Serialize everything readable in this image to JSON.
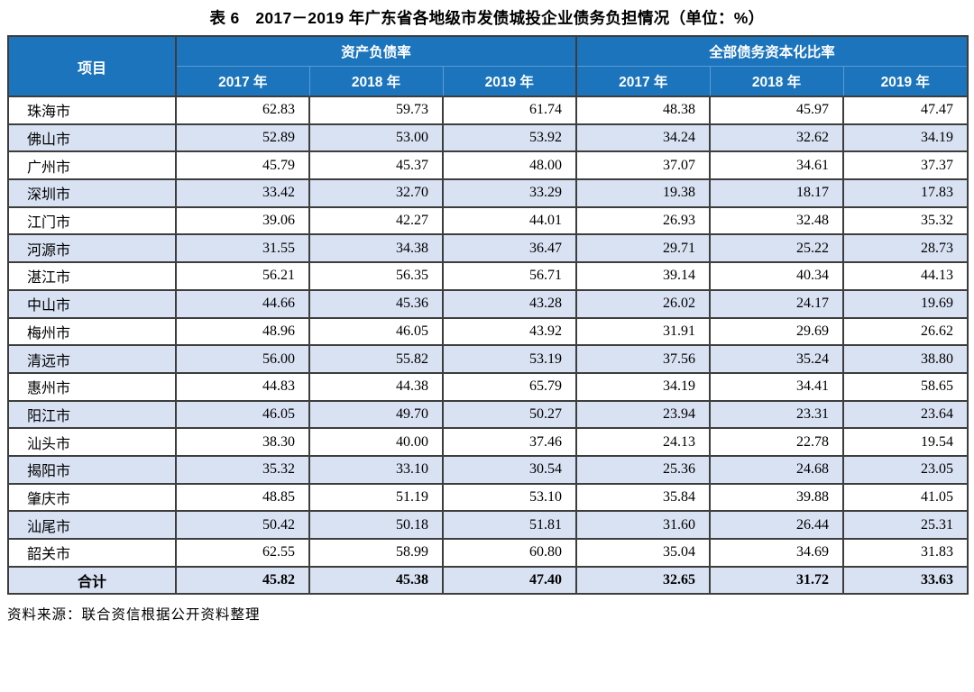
{
  "page": {
    "title": "表 6　2017－2019 年广东省各地级市发债城投企业债务负担情况（单位：%）",
    "source_note": "资料来源：联合资信根据公开资料整理"
  },
  "colors": {
    "header_bg": "#1b74bc",
    "header_text": "#ffffff",
    "alt_row_bg": "#d9e2f3",
    "grid_border": "#3d3d3d",
    "header_inner_border": "#5b9bd5"
  },
  "table": {
    "item_header": "项目",
    "groups": [
      {
        "label": "资产负债率",
        "years": [
          "2017 年",
          "2018 年",
          "2019 年"
        ]
      },
      {
        "label": "全部债务资本化比率",
        "years": [
          "2017 年",
          "2018 年",
          "2019 年"
        ]
      }
    ],
    "rows": [
      {
        "name": "珠海市",
        "values": [
          "62.83",
          "59.73",
          "61.74",
          "48.38",
          "45.97",
          "47.47"
        ]
      },
      {
        "name": "佛山市",
        "values": [
          "52.89",
          "53.00",
          "53.92",
          "34.24",
          "32.62",
          "34.19"
        ]
      },
      {
        "name": "广州市",
        "values": [
          "45.79",
          "45.37",
          "48.00",
          "37.07",
          "34.61",
          "37.37"
        ]
      },
      {
        "name": "深圳市",
        "values": [
          "33.42",
          "32.70",
          "33.29",
          "19.38",
          "18.17",
          "17.83"
        ]
      },
      {
        "name": "江门市",
        "values": [
          "39.06",
          "42.27",
          "44.01",
          "26.93",
          "32.48",
          "35.32"
        ]
      },
      {
        "name": "河源市",
        "values": [
          "31.55",
          "34.38",
          "36.47",
          "29.71",
          "25.22",
          "28.73"
        ]
      },
      {
        "name": "湛江市",
        "values": [
          "56.21",
          "56.35",
          "56.71",
          "39.14",
          "40.34",
          "44.13"
        ]
      },
      {
        "name": "中山市",
        "values": [
          "44.66",
          "45.36",
          "43.28",
          "26.02",
          "24.17",
          "19.69"
        ]
      },
      {
        "name": "梅州市",
        "values": [
          "48.96",
          "46.05",
          "43.92",
          "31.91",
          "29.69",
          "26.62"
        ]
      },
      {
        "name": "清远市",
        "values": [
          "56.00",
          "55.82",
          "53.19",
          "37.56",
          "35.24",
          "38.80"
        ]
      },
      {
        "name": "惠州市",
        "values": [
          "44.83",
          "44.38",
          "65.79",
          "34.19",
          "34.41",
          "58.65"
        ]
      },
      {
        "name": "阳江市",
        "values": [
          "46.05",
          "49.70",
          "50.27",
          "23.94",
          "23.31",
          "23.64"
        ]
      },
      {
        "name": "汕头市",
        "values": [
          "38.30",
          "40.00",
          "37.46",
          "24.13",
          "22.78",
          "19.54"
        ]
      },
      {
        "name": "揭阳市",
        "values": [
          "35.32",
          "33.10",
          "30.54",
          "25.36",
          "24.68",
          "23.05"
        ]
      },
      {
        "name": "肇庆市",
        "values": [
          "48.85",
          "51.19",
          "53.10",
          "35.84",
          "39.88",
          "41.05"
        ]
      },
      {
        "name": "汕尾市",
        "values": [
          "50.42",
          "50.18",
          "51.81",
          "31.60",
          "26.44",
          "25.31"
        ]
      },
      {
        "name": "韶关市",
        "values": [
          "62.55",
          "58.99",
          "60.80",
          "35.04",
          "34.69",
          "31.83"
        ]
      }
    ],
    "total_row": {
      "name": "合计",
      "values": [
        "45.82",
        "45.38",
        "47.40",
        "32.65",
        "31.72",
        "33.63"
      ]
    }
  }
}
